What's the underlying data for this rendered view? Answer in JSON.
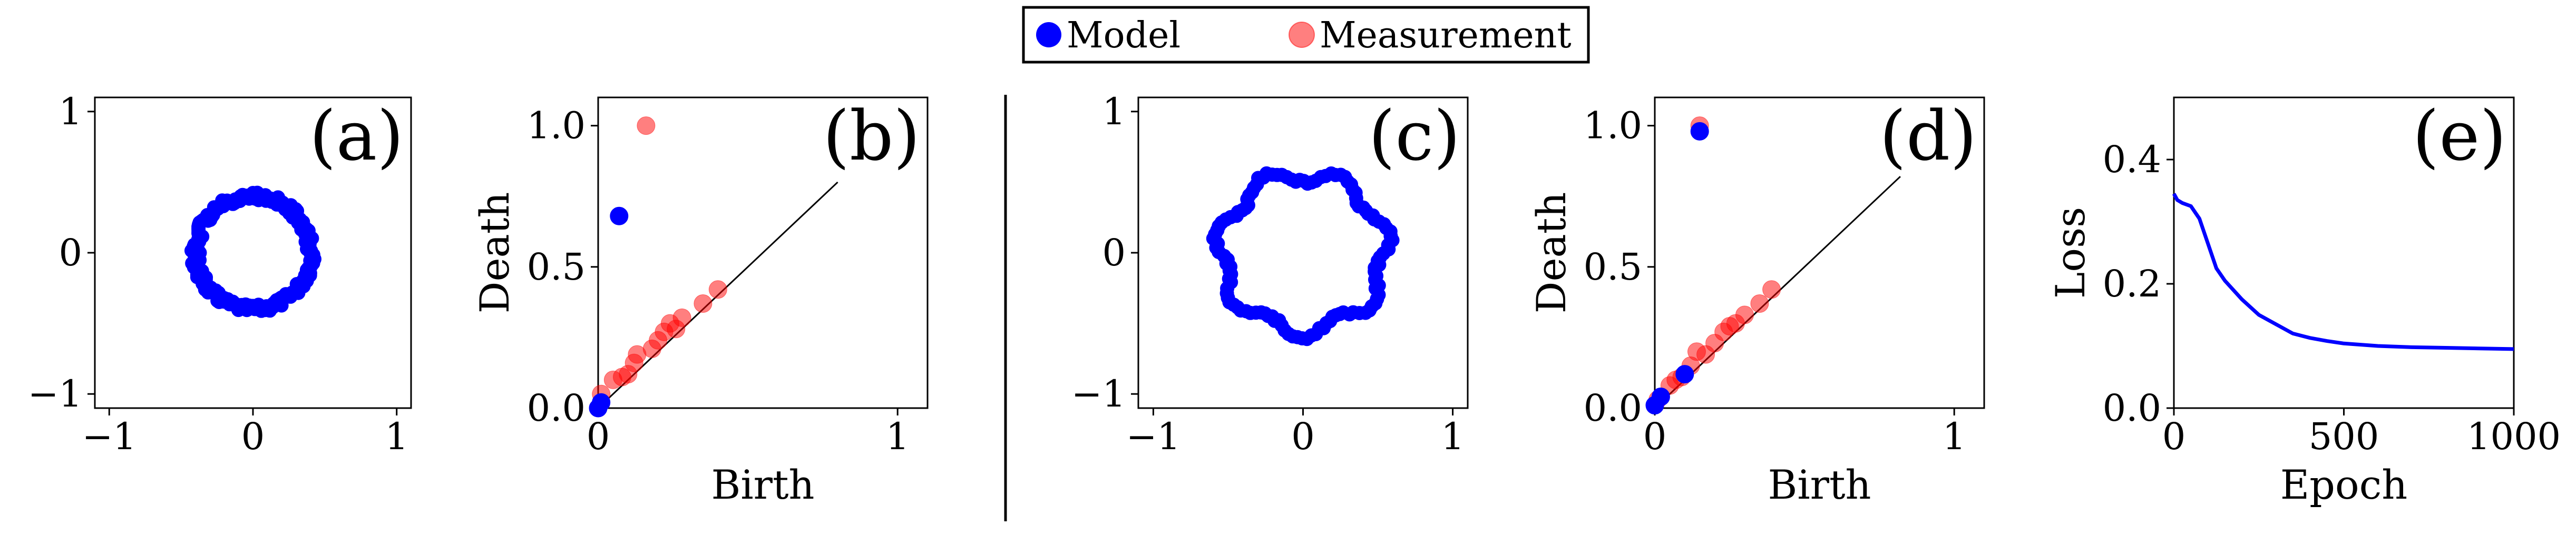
{
  "legend": {
    "items": [
      {
        "label": "Model",
        "color": "#0000ff",
        "alpha": 1.0
      },
      {
        "label": "Measurement",
        "color": "#ff0000",
        "alpha": 0.5
      }
    ],
    "placement": "top-center"
  },
  "chart_data": [
    {
      "id": "a",
      "type": "scatter",
      "panel_label": "(a)",
      "xlabel": "",
      "ylabel": "",
      "xlim": [
        -1.1,
        1.1
      ],
      "ylim": [
        -1.1,
        1.1
      ],
      "xticks": [
        -1,
        0,
        1
      ],
      "yticks": [
        -1,
        0,
        1
      ],
      "xticklabels": [
        "−1",
        "0",
        "1"
      ],
      "yticklabels": [
        "−1",
        "0",
        "1"
      ],
      "series": [
        {
          "name": "Model",
          "color": "#0000ff",
          "alpha": 1.0,
          "shape": "ring",
          "center": [
            0,
            0
          ],
          "radius": 0.4,
          "jitter": 0.03,
          "count": 180
        }
      ]
    },
    {
      "id": "b",
      "type": "scatter",
      "panel_label": "(b)",
      "xlabel": "Birth",
      "ylabel": "Death",
      "xlim": [
        0,
        1.1
      ],
      "ylim": [
        0,
        1.1
      ],
      "xticks": [
        0,
        1
      ],
      "yticks": [
        0,
        0.5,
        1
      ],
      "xticklabels": [
        "0",
        "1"
      ],
      "yticklabels": [
        "0.0",
        "0.5",
        "1.0"
      ],
      "diagonal": [
        0,
        0.8
      ],
      "series": [
        {
          "name": "Measurement",
          "color": "#ff0000",
          "alpha": 0.5,
          "points": [
            [
              0.16,
              1.0
            ],
            [
              0.01,
              0.05
            ],
            [
              0.05,
              0.1
            ],
            [
              0.1,
              0.12
            ],
            [
              0.12,
              0.16
            ],
            [
              0.13,
              0.19
            ],
            [
              0.2,
              0.24
            ],
            [
              0.22,
              0.27
            ],
            [
              0.24,
              0.3
            ],
            [
              0.28,
              0.32
            ],
            [
              0.35,
              0.37
            ],
            [
              0.4,
              0.42
            ],
            [
              0.26,
              0.28
            ],
            [
              0.18,
              0.21
            ],
            [
              0.08,
              0.11
            ]
          ]
        },
        {
          "name": "Model",
          "color": "#0000ff",
          "alpha": 1.0,
          "points": [
            [
              0.07,
              0.68
            ],
            [
              0.0,
              0.0
            ],
            [
              0.01,
              0.02
            ]
          ]
        }
      ]
    },
    {
      "id": "c",
      "type": "scatter",
      "panel_label": "(c)",
      "xlabel": "",
      "ylabel": "",
      "xlim": [
        -1.1,
        1.1
      ],
      "ylim": [
        -1.1,
        1.1
      ],
      "xticks": [
        -1,
        0,
        1
      ],
      "yticks": [
        -1,
        0,
        1
      ],
      "xticklabels": [
        "−1",
        "0",
        "1"
      ],
      "yticklabels": [
        "−1",
        "0",
        "1"
      ],
      "series": [
        {
          "name": "Model",
          "color": "#0000ff",
          "alpha": 1.0,
          "shape": "wavy-ring",
          "center": [
            0,
            0
          ],
          "radius": 0.55,
          "wave_amp": 0.05,
          "wave_freq": 7,
          "count": 120
        }
      ]
    },
    {
      "id": "d",
      "type": "scatter",
      "panel_label": "(d)",
      "xlabel": "Birth",
      "ylabel": "Death",
      "xlim": [
        0,
        1.1
      ],
      "ylim": [
        0,
        1.1
      ],
      "xticks": [
        0,
        1
      ],
      "yticks": [
        0,
        0.5,
        1
      ],
      "xticklabels": [
        "0",
        "1"
      ],
      "yticklabels": [
        "0.0",
        "0.5",
        "1.0"
      ],
      "diagonal": [
        0,
        0.82
      ],
      "series": [
        {
          "name": "Measurement",
          "color": "#ff0000",
          "alpha": 0.5,
          "points": [
            [
              0.15,
              1.0
            ],
            [
              0.01,
              0.03
            ],
            [
              0.05,
              0.08
            ],
            [
              0.09,
              0.11
            ],
            [
              0.12,
              0.15
            ],
            [
              0.14,
              0.2
            ],
            [
              0.2,
              0.23
            ],
            [
              0.23,
              0.27
            ],
            [
              0.25,
              0.29
            ],
            [
              0.3,
              0.33
            ],
            [
              0.35,
              0.37
            ],
            [
              0.39,
              0.42
            ],
            [
              0.27,
              0.3
            ],
            [
              0.17,
              0.19
            ],
            [
              0.07,
              0.1
            ]
          ]
        },
        {
          "name": "Model",
          "color": "#0000ff",
          "alpha": 1.0,
          "points": [
            [
              0.15,
              0.98
            ],
            [
              0.0,
              0.01
            ],
            [
              0.02,
              0.04
            ],
            [
              0.1,
              0.12
            ]
          ]
        }
      ]
    },
    {
      "id": "e",
      "type": "line",
      "panel_label": "(e)",
      "xlabel": "Epoch",
      "ylabel": "Loss",
      "xlim": [
        0,
        1000
      ],
      "ylim": [
        0,
        0.5
      ],
      "xticks": [
        0,
        500,
        1000
      ],
      "yticks": [
        0,
        0.2,
        0.4
      ],
      "xticklabels": [
        "0",
        "500",
        "1000"
      ],
      "yticklabels": [
        "0.0",
        "0.2",
        "0.4"
      ],
      "series": [
        {
          "name": "Model",
          "color": "#0000ff",
          "x": [
            0,
            10,
            25,
            50,
            75,
            100,
            125,
            150,
            200,
            250,
            300,
            350,
            400,
            450,
            500,
            600,
            700,
            800,
            900,
            1000
          ],
          "y": [
            0.345,
            0.335,
            0.33,
            0.325,
            0.305,
            0.265,
            0.225,
            0.205,
            0.175,
            0.15,
            0.135,
            0.12,
            0.113,
            0.108,
            0.104,
            0.1,
            0.098,
            0.097,
            0.096,
            0.095
          ]
        }
      ]
    }
  ]
}
